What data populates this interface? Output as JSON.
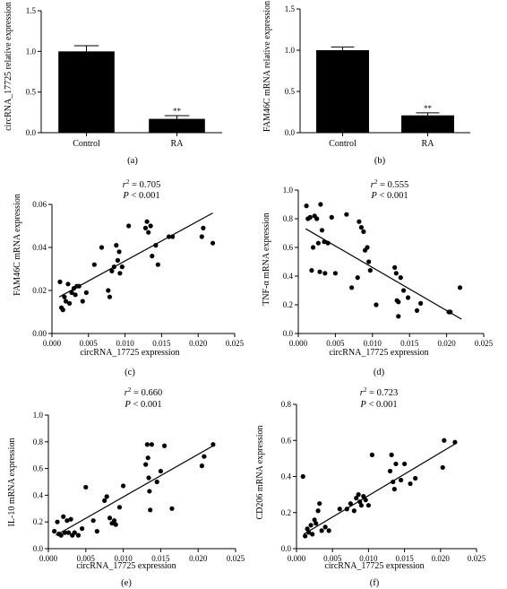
{
  "chart_data": [
    {
      "id": "a",
      "type": "bar",
      "panel_label": "(a)",
      "ylabel": "circRNA_17725 relative expression",
      "xlabel": "",
      "categories": [
        "Control",
        "RA"
      ],
      "values": [
        1.0,
        0.17
      ],
      "errors": [
        0.07,
        0.04
      ],
      "annotations": [
        "",
        "**"
      ],
      "ylim": [
        0,
        1.5
      ],
      "yticks": [
        "0.0",
        "0.5",
        "1.0",
        "1.5"
      ],
      "bar_color": "#000000"
    },
    {
      "id": "b",
      "type": "bar",
      "panel_label": "(b)",
      "ylabel": "FAM46C mRNA relative expression",
      "xlabel": "",
      "categories": [
        "Control",
        "RA"
      ],
      "values": [
        1.0,
        0.21
      ],
      "errors": [
        0.04,
        0.03
      ],
      "annotations": [
        "",
        "**"
      ],
      "ylim": [
        0,
        1.5
      ],
      "yticks": [
        "0.0",
        "0.5",
        "1.0",
        "1.5"
      ],
      "bar_color": "#000000"
    },
    {
      "id": "c",
      "type": "scatter",
      "panel_label": "(c)",
      "xlabel": "circRNA_17725 expression",
      "ylabel": "FAM46C mRNA expression",
      "r2_value": "0.705",
      "p_text": "< 0.001",
      "xlim": [
        0,
        0.025
      ],
      "ylim": [
        0,
        0.06
      ],
      "xticks": [
        "0.000",
        "0.005",
        "0.010",
        "0.015",
        "0.020",
        "0.025"
      ],
      "yticks": [
        "0.00",
        "0.02",
        "0.04",
        "0.06"
      ],
      "fit_line": [
        [
          0.001,
          0.017
        ],
        [
          0.022,
          0.056
        ]
      ],
      "points": [
        [
          0.0011,
          0.024
        ],
        [
          0.0013,
          0.012
        ],
        [
          0.0015,
          0.011
        ],
        [
          0.0017,
          0.017
        ],
        [
          0.0019,
          0.015
        ],
        [
          0.0022,
          0.023
        ],
        [
          0.0024,
          0.014
        ],
        [
          0.0027,
          0.019
        ],
        [
          0.003,
          0.021
        ],
        [
          0.0032,
          0.018
        ],
        [
          0.0034,
          0.022
        ],
        [
          0.0037,
          0.022
        ],
        [
          0.0042,
          0.015
        ],
        [
          0.0047,
          0.019
        ],
        [
          0.0058,
          0.032
        ],
        [
          0.0068,
          0.04
        ],
        [
          0.0077,
          0.02
        ],
        [
          0.0079,
          0.017
        ],
        [
          0.0082,
          0.029
        ],
        [
          0.0085,
          0.031
        ],
        [
          0.0088,
          0.041
        ],
        [
          0.009,
          0.034
        ],
        [
          0.0092,
          0.038
        ],
        [
          0.0093,
          0.028
        ],
        [
          0.0096,
          0.031
        ],
        [
          0.0105,
          0.05
        ],
        [
          0.0128,
          0.049
        ],
        [
          0.013,
          0.052
        ],
        [
          0.0132,
          0.047
        ],
        [
          0.0135,
          0.05
        ],
        [
          0.0137,
          0.036
        ],
        [
          0.0142,
          0.041
        ],
        [
          0.0145,
          0.032
        ],
        [
          0.016,
          0.045
        ],
        [
          0.0165,
          0.045
        ],
        [
          0.0205,
          0.045
        ],
        [
          0.0207,
          0.049
        ],
        [
          0.022,
          0.042
        ]
      ]
    },
    {
      "id": "d",
      "type": "scatter",
      "panel_label": "(d)",
      "xlabel": "circRNA_17725 expression",
      "ylabel": "TNF-α mRNA expression",
      "r2_value": "0.555",
      "p_text": "< 0.001",
      "xlim": [
        0,
        0.025
      ],
      "ylim": [
        0,
        1.0
      ],
      "xticks": [
        "0.000",
        "0.005",
        "0.010",
        "0.015",
        "0.020",
        "0.025"
      ],
      "yticks": [
        "0.0",
        "0.2",
        "0.4",
        "0.6",
        "0.8",
        "1.0"
      ],
      "fit_line": [
        [
          0.001,
          0.73
        ],
        [
          0.022,
          0.1
        ]
      ],
      "points": [
        [
          0.0011,
          0.89
        ],
        [
          0.0013,
          0.8
        ],
        [
          0.0016,
          0.81
        ],
        [
          0.0018,
          0.44
        ],
        [
          0.002,
          0.6
        ],
        [
          0.0022,
          0.82
        ],
        [
          0.0025,
          0.8
        ],
        [
          0.0027,
          0.63
        ],
        [
          0.0029,
          0.43
        ],
        [
          0.003,
          0.9
        ],
        [
          0.0032,
          0.72
        ],
        [
          0.0035,
          0.64
        ],
        [
          0.0036,
          0.42
        ],
        [
          0.004,
          0.63
        ],
        [
          0.0045,
          0.81
        ],
        [
          0.005,
          0.42
        ],
        [
          0.0065,
          0.83
        ],
        [
          0.0072,
          0.32
        ],
        [
          0.008,
          0.39
        ],
        [
          0.0082,
          0.78
        ],
        [
          0.0085,
          0.74
        ],
        [
          0.0088,
          0.71
        ],
        [
          0.009,
          0.58
        ],
        [
          0.0093,
          0.6
        ],
        [
          0.0095,
          0.5
        ],
        [
          0.0097,
          0.44
        ],
        [
          0.0105,
          0.2
        ],
        [
          0.013,
          0.46
        ],
        [
          0.0132,
          0.42
        ],
        [
          0.0133,
          0.23
        ],
        [
          0.0135,
          0.22
        ],
        [
          0.0135,
          0.12
        ],
        [
          0.0138,
          0.39
        ],
        [
          0.0142,
          0.3
        ],
        [
          0.0148,
          0.25
        ],
        [
          0.016,
          0.16
        ],
        [
          0.0165,
          0.21
        ],
        [
          0.0203,
          0.15
        ],
        [
          0.0205,
          0.15
        ],
        [
          0.0218,
          0.32
        ]
      ]
    },
    {
      "id": "e",
      "type": "scatter",
      "panel_label": "(e)",
      "xlabel": "circRNA_17725 expression",
      "ylabel": "IL-10 mRNA expression",
      "r2_value": "0.660",
      "p_text": "< 0.001",
      "xlim": [
        0,
        0.025
      ],
      "ylim": [
        0,
        1.0
      ],
      "xticks": [
        "0.000",
        "0.005",
        "0.010",
        "0.015",
        "0.020",
        "0.025"
      ],
      "yticks": [
        "0.0",
        "0.2",
        "0.4",
        "0.6",
        "0.8",
        "1.0"
      ],
      "fit_line": [
        [
          0.001,
          0.1
        ],
        [
          0.022,
          0.77
        ]
      ],
      "points": [
        [
          0.0008,
          0.13
        ],
        [
          0.0012,
          0.2
        ],
        [
          0.0014,
          0.11
        ],
        [
          0.0017,
          0.1
        ],
        [
          0.002,
          0.24
        ],
        [
          0.0022,
          0.12
        ],
        [
          0.0025,
          0.21
        ],
        [
          0.0027,
          0.12
        ],
        [
          0.003,
          0.22
        ],
        [
          0.0032,
          0.1
        ],
        [
          0.0035,
          0.12
        ],
        [
          0.004,
          0.1
        ],
        [
          0.0045,
          0.15
        ],
        [
          0.005,
          0.46
        ],
        [
          0.006,
          0.21
        ],
        [
          0.0065,
          0.13
        ],
        [
          0.0075,
          0.36
        ],
        [
          0.0078,
          0.39
        ],
        [
          0.0082,
          0.23
        ],
        [
          0.0085,
          0.19
        ],
        [
          0.0088,
          0.21
        ],
        [
          0.009,
          0.18
        ],
        [
          0.0095,
          0.31
        ],
        [
          0.01,
          0.47
        ],
        [
          0.013,
          0.63
        ],
        [
          0.0132,
          0.78
        ],
        [
          0.0133,
          0.68
        ],
        [
          0.0134,
          0.53
        ],
        [
          0.0135,
          0.43
        ],
        [
          0.0136,
          0.29
        ],
        [
          0.0138,
          0.78
        ],
        [
          0.0145,
          0.5
        ],
        [
          0.015,
          0.58
        ],
        [
          0.0155,
          0.77
        ],
        [
          0.0165,
          0.3
        ],
        [
          0.0205,
          0.62
        ],
        [
          0.0208,
          0.69
        ],
        [
          0.022,
          0.78
        ]
      ]
    },
    {
      "id": "f",
      "type": "scatter",
      "panel_label": "(f)",
      "xlabel": "circRNA_17725 expression",
      "ylabel": "CD206 mRNA expression",
      "r2_value": "0.723",
      "p_text": "< 0.001",
      "xlim": [
        0,
        0.025
      ],
      "ylim": [
        0,
        0.8
      ],
      "xticks": [
        "0.000",
        "0.005",
        "0.010",
        "0.015",
        "0.020",
        "0.025"
      ],
      "yticks": [
        "0.0",
        "0.2",
        "0.4",
        "0.6",
        "0.8"
      ],
      "fit_line": [
        [
          0.001,
          0.08
        ],
        [
          0.022,
          0.58
        ]
      ],
      "points": [
        [
          0.0009,
          0.4
        ],
        [
          0.0012,
          0.07
        ],
        [
          0.0015,
          0.11
        ],
        [
          0.0017,
          0.09
        ],
        [
          0.002,
          0.13
        ],
        [
          0.0022,
          0.08
        ],
        [
          0.0025,
          0.16
        ],
        [
          0.0027,
          0.14
        ],
        [
          0.003,
          0.21
        ],
        [
          0.0032,
          0.25
        ],
        [
          0.0035,
          0.1
        ],
        [
          0.004,
          0.12
        ],
        [
          0.0045,
          0.1
        ],
        [
          0.006,
          0.22
        ],
        [
          0.007,
          0.22
        ],
        [
          0.0075,
          0.25
        ],
        [
          0.008,
          0.21
        ],
        [
          0.0083,
          0.28
        ],
        [
          0.0086,
          0.3
        ],
        [
          0.0088,
          0.26
        ],
        [
          0.009,
          0.24
        ],
        [
          0.0093,
          0.29
        ],
        [
          0.0096,
          0.27
        ],
        [
          0.01,
          0.24
        ],
        [
          0.0105,
          0.52
        ],
        [
          0.013,
          0.43
        ],
        [
          0.0132,
          0.52
        ],
        [
          0.0134,
          0.37
        ],
        [
          0.0136,
          0.33
        ],
        [
          0.0138,
          0.47
        ],
        [
          0.0145,
          0.38
        ],
        [
          0.015,
          0.47
        ],
        [
          0.0158,
          0.36
        ],
        [
          0.0165,
          0.39
        ],
        [
          0.0203,
          0.45
        ],
        [
          0.0205,
          0.6
        ],
        [
          0.022,
          0.59
        ]
      ]
    }
  ]
}
